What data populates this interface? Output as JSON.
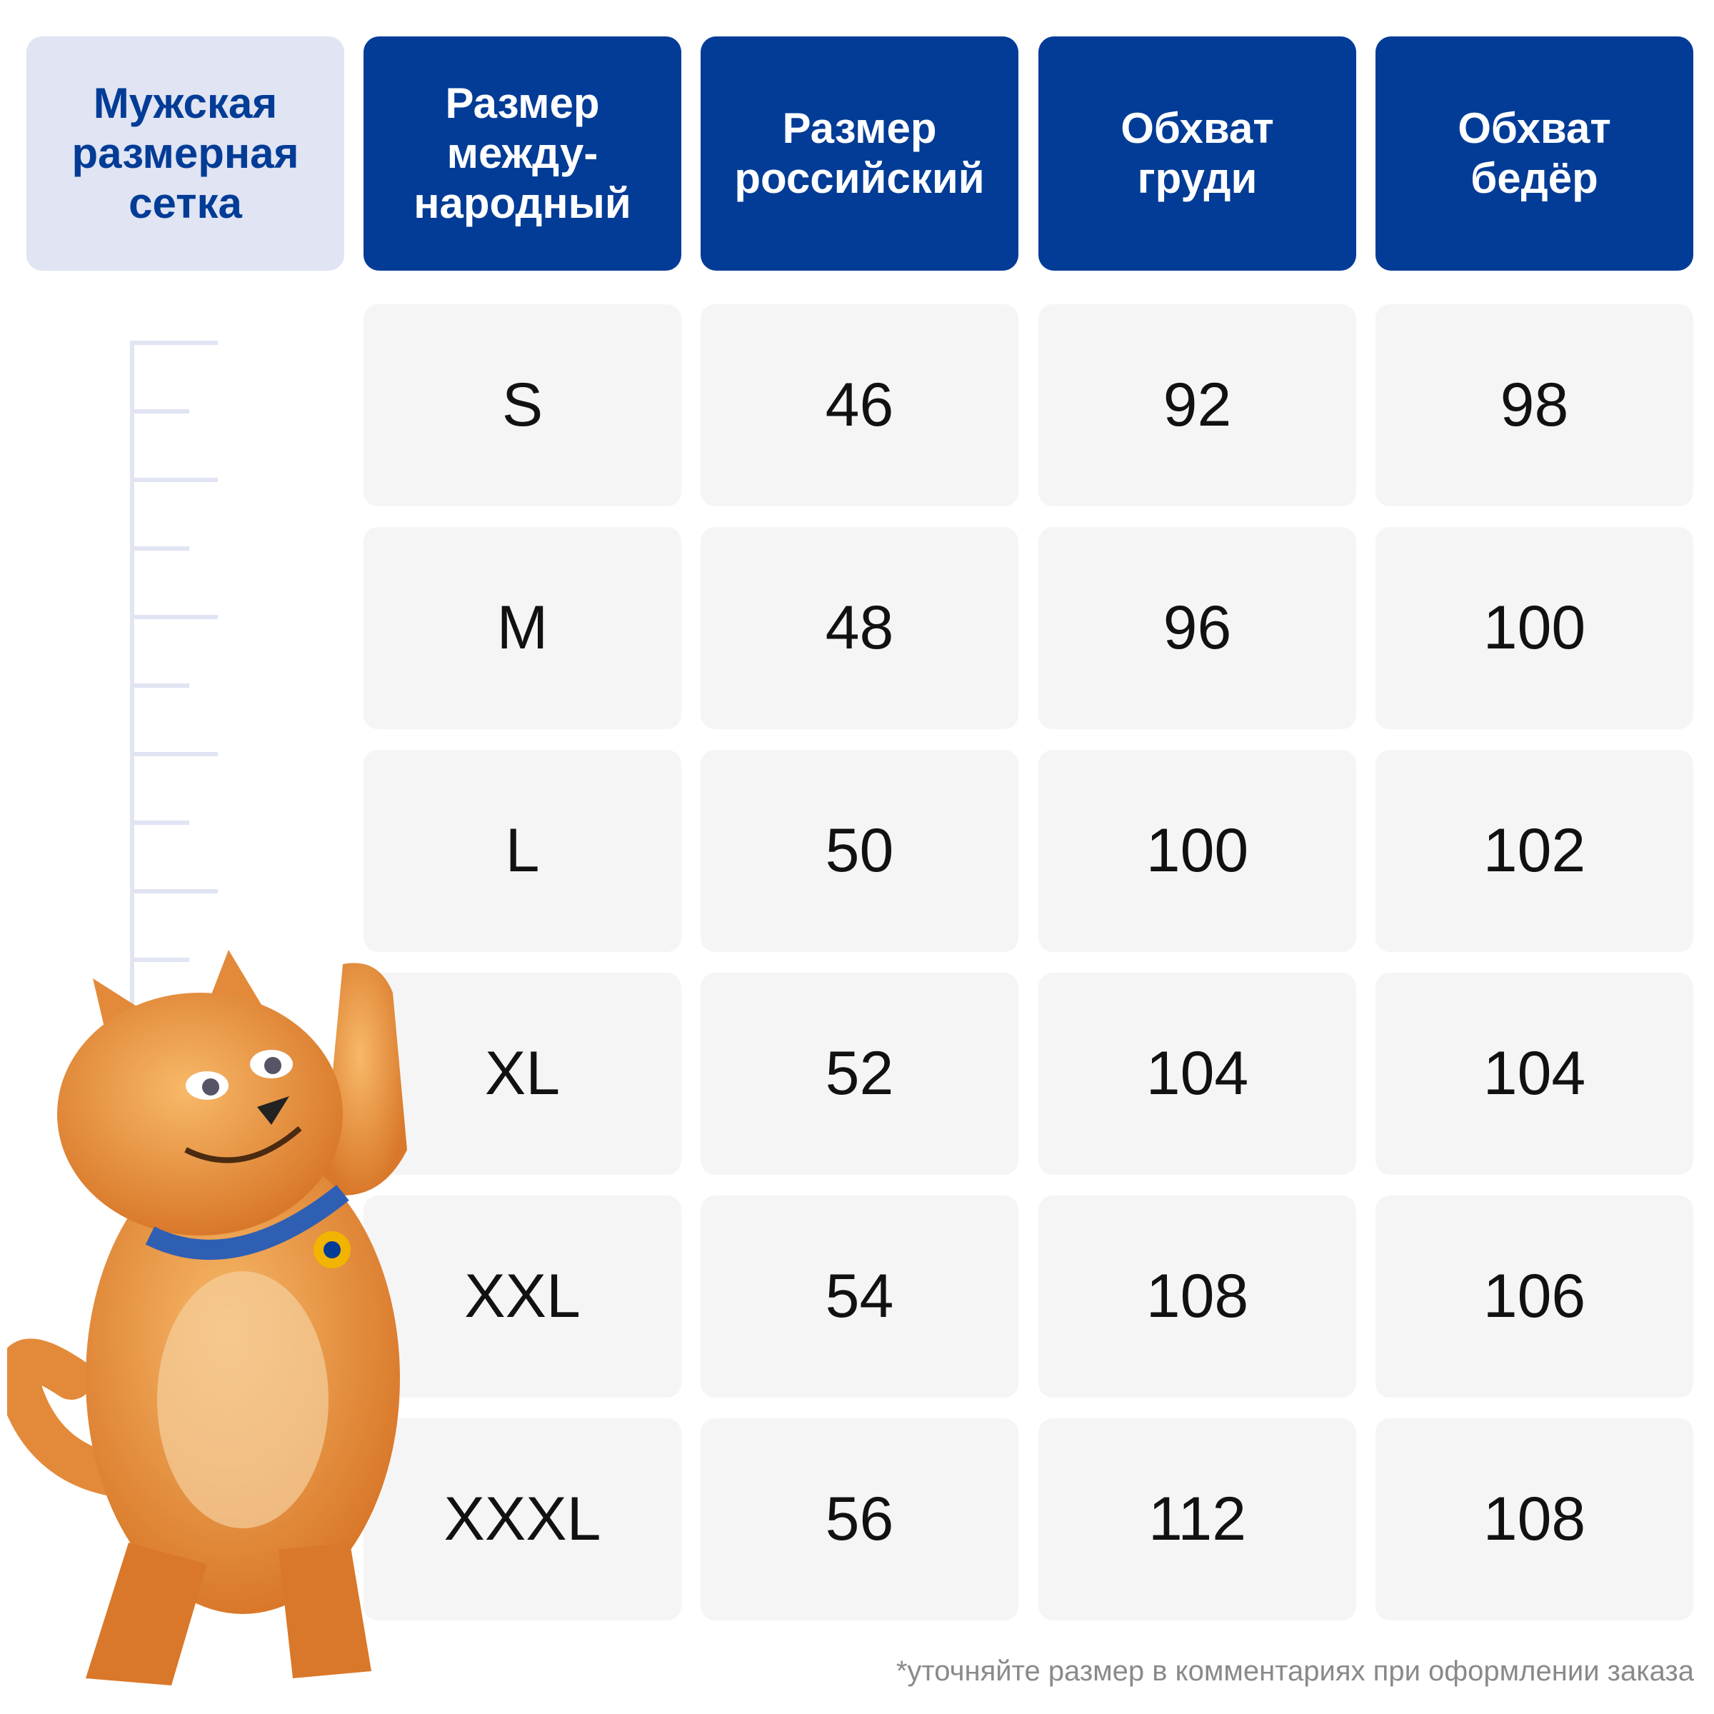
{
  "title": "Мужская\nразмерная\nсетка",
  "columns": [
    "Размер\nмежду-\nнародный",
    "Размер\nроссийский",
    "Обхват\nгруди",
    "Обхват\nбедёр"
  ],
  "rows": [
    [
      "S",
      "46",
      "92",
      "98"
    ],
    [
      "M",
      "48",
      "96",
      "100"
    ],
    [
      "L",
      "50",
      "100",
      "102"
    ],
    [
      "XL",
      "52",
      "104",
      "104"
    ],
    [
      "XXL",
      "54",
      "108",
      "106"
    ],
    [
      "XXXL",
      "56",
      "112",
      "108"
    ]
  ],
  "footnote": "*уточняйте размер в комментариях при оформлении заказа",
  "colors": {
    "header": "#023c96",
    "title_bg": "#e0e4f3",
    "cell_bg": "#f5f5f5",
    "mascot": "#e8923f"
  },
  "mascot": "orange-cat-mascot"
}
